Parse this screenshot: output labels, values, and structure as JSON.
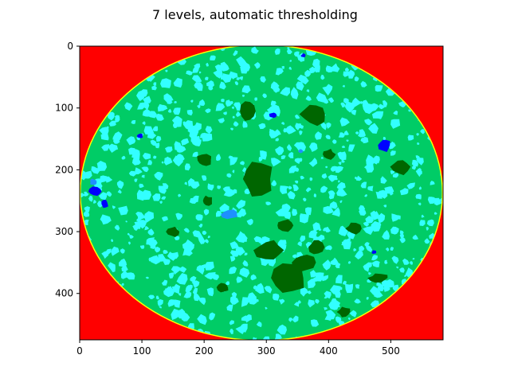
{
  "chart_data": {
    "type": "heatmap",
    "title": "7 levels, automatic thresholding",
    "xlabel": "",
    "ylabel": "",
    "xlim": [
      0,
      584
    ],
    "ylim": [
      475,
      0
    ],
    "x_ticks": [
      0,
      100,
      200,
      300,
      400,
      500
    ],
    "y_ticks": [
      0,
      100,
      200,
      300,
      400
    ],
    "image_size": {
      "width": 584,
      "height": 475
    },
    "colors": {
      "background_region": "#ff0000",
      "rim": "#ffff00",
      "matrix": "#00cc66",
      "grains": "#33ffff",
      "dark_regions": "#006600",
      "blue_pores": "#0000ff",
      "light_blue_pores": "#1e90ff"
    },
    "disk": {
      "cx": 292,
      "cy": 237,
      "rx": 292,
      "ry": 240
    },
    "dark_patches": [
      [
        335,
        375,
        32,
        28
      ],
      [
        360,
        350,
        18,
        14
      ],
      [
        305,
        330,
        22,
        16
      ],
      [
        270,
        105,
        12,
        15
      ],
      [
        375,
        110,
        20,
        18
      ],
      [
        515,
        195,
        15,
        12
      ],
      [
        285,
        215,
        25,
        28
      ],
      [
        330,
        290,
        15,
        10
      ],
      [
        200,
        185,
        12,
        10
      ],
      [
        440,
        295,
        12,
        9
      ],
      [
        480,
        375,
        15,
        7
      ],
      [
        230,
        390,
        10,
        8
      ],
      [
        380,
        325,
        12,
        12
      ],
      [
        150,
        300,
        10,
        8
      ],
      [
        425,
        430,
        10,
        8
      ],
      [
        205,
        250,
        8,
        8
      ],
      [
        400,
        175,
        10,
        8
      ]
    ],
    "blue_pores": [
      [
        490,
        160,
        10,
        10
      ],
      [
        25,
        235,
        12,
        8
      ],
      [
        40,
        255,
        6,
        6
      ],
      [
        310,
        112,
        6,
        4
      ],
      [
        97,
        145,
        5,
        4
      ],
      [
        473,
        333,
        4,
        3
      ],
      [
        360,
        15,
        4,
        3
      ]
    ],
    "light_blue_pores": [
      [
        242,
        272,
        14,
        7
      ],
      [
        22,
        220,
        6,
        5
      ],
      [
        355,
        170,
        4,
        3
      ]
    ]
  }
}
